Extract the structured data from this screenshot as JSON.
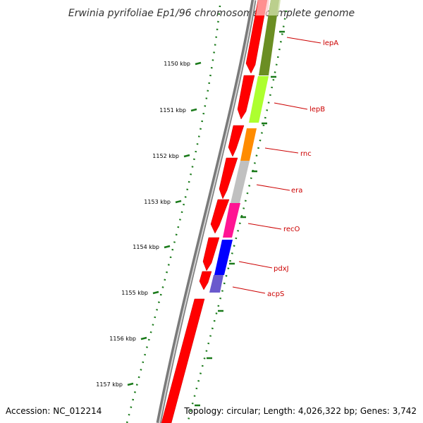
{
  "title": "Erwinia pyrifoliae Ep1/96 chromosome, complete genome",
  "footer": {
    "accession": "Accession: NC_012214",
    "summary": "Topology: circular; Length: 4,026,322 bp; Genes: 3,742"
  },
  "colors": {
    "tick": "#1a7a1a",
    "backbone": "#777777",
    "gene_label": "#cc0000",
    "reverse_strand_gene": "#ff0000"
  },
  "ruler": [
    {
      "label": "1150 kbp"
    },
    {
      "label": "1151 kbp"
    },
    {
      "label": "1152 kbp"
    },
    {
      "label": "1153 kbp"
    },
    {
      "label": "1154 kbp"
    },
    {
      "label": "1155 kbp"
    },
    {
      "label": "1156 kbp"
    },
    {
      "label": "1157 kbp"
    }
  ],
  "genes": [
    {
      "name": "lepA",
      "color": "#6b8e23"
    },
    {
      "name": "lepB",
      "color": "#adff2f"
    },
    {
      "name": "rnc",
      "color": "#ff8c00"
    },
    {
      "name": "era",
      "color": "#c0c0c0"
    },
    {
      "name": "recO",
      "color": "#ff1493"
    },
    {
      "name": "pdxJ",
      "color": "#0000ff"
    },
    {
      "name": "acpS",
      "color": "#6a5acd"
    }
  ]
}
